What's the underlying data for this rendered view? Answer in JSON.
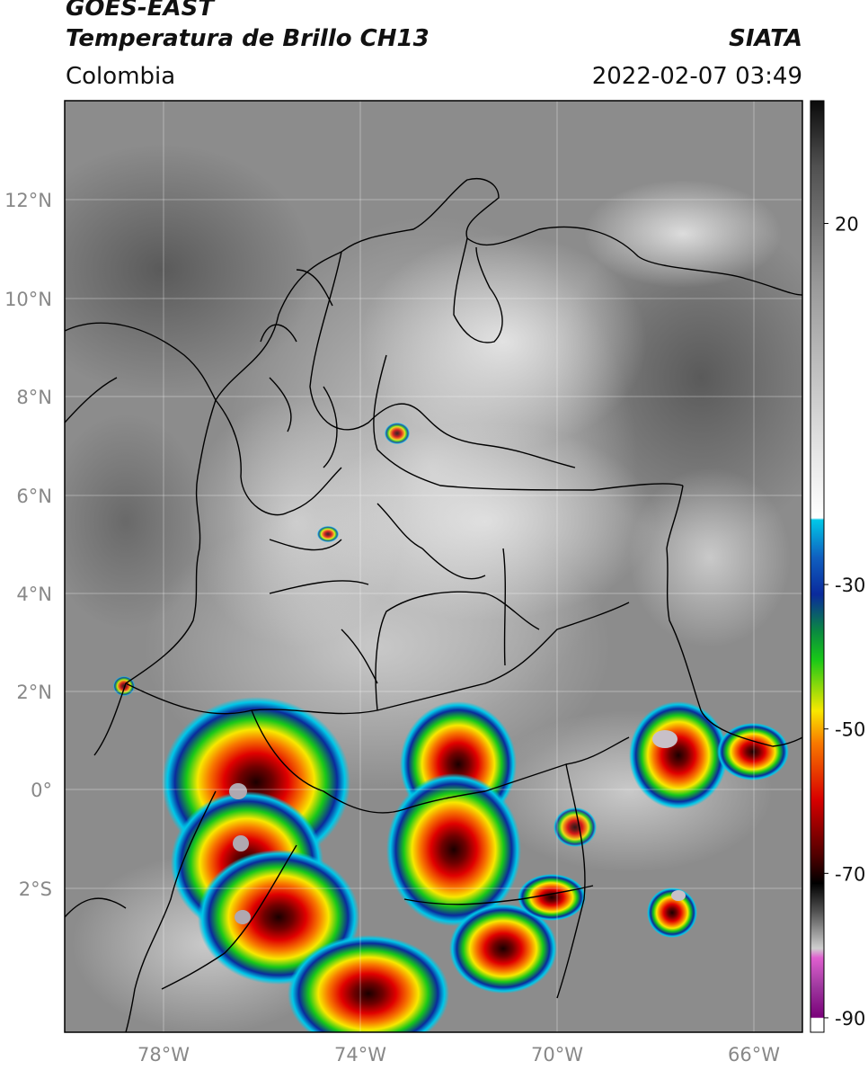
{
  "header": {
    "satellite": "GOES-EAST",
    "product": "Temperatura de Brillo CH13",
    "region": "Colombia",
    "source": "SIATA",
    "datetime": "2022-02-07 03:49"
  },
  "map": {
    "lat_labels": [
      "12°N",
      "10°N",
      "8°N",
      "6°N",
      "4°N",
      "2°N",
      "0°",
      "2°S"
    ],
    "lon_labels": [
      "78°W",
      "74°W",
      "70°W",
      "66°W"
    ],
    "lat_values": [
      12,
      10,
      8,
      6,
      4,
      2,
      0,
      -2
    ],
    "lon_values": [
      -78,
      -74,
      -70,
      -66
    ],
    "extent": {
      "lon_min": -80,
      "lon_max": -65,
      "lat_min": -5.2,
      "lat_max": 14
    }
  },
  "colorbar": {
    "tick_labels": [
      "20",
      "-30",
      "-50",
      "-70",
      "-90"
    ],
    "tick_values": [
      20,
      -30,
      -50,
      -70,
      -90
    ],
    "range": [
      -92,
      37
    ],
    "colors": {
      "warm_top": "#111111",
      "gray_mid": "#8a8a8a",
      "cold_white": "#f5f5f5",
      "cyan": "#00c8e8",
      "blue": "#0a2a9c",
      "green": "#18c818",
      "yellow": "#f8e800",
      "orange": "#f87800",
      "red": "#d80000",
      "dark_red": "#500000",
      "magenta": "#e060d0",
      "purple": "#7a007a"
    }
  }
}
